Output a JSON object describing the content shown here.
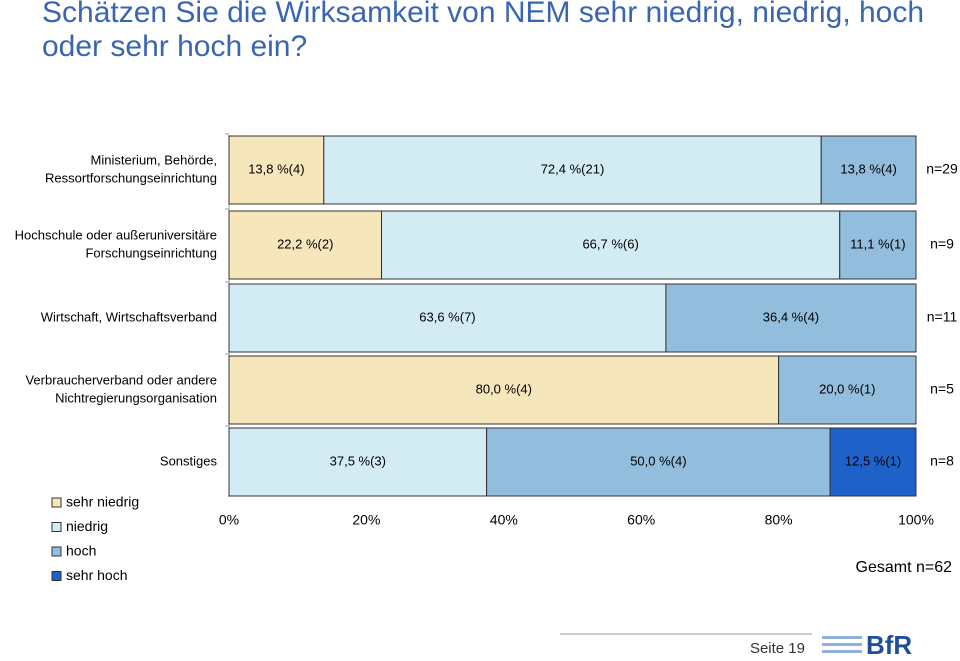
{
  "chart_data": {
    "type": "stacked-bar-horizontal",
    "title": "Schätzen Sie die Wirksamkeit von NEM sehr niedrig, niedrig, hoch oder sehr hoch ein?",
    "categories": [
      [
        "Ministerium, Behörde,",
        "Ressortforschungseinrichtung"
      ],
      [
        "Hochschule oder außeruniversitäre",
        "Forschungseinrichtung"
      ],
      [
        "Wirtschaft, Wirtschaftsverband"
      ],
      [
        "Verbraucherverband oder andere",
        "Nichtregierungsorganisation"
      ],
      [
        "Sonstiges"
      ]
    ],
    "series": [
      {
        "name": "sehr niedrig",
        "color": "#f5e6bb",
        "values": [
          13.8,
          22.2,
          null,
          80.0,
          null
        ],
        "value_labels": [
          "13,8 %(4)",
          "22,2 %(2)",
          null,
          "80,0 %(4)",
          null
        ]
      },
      {
        "name": "niedrig",
        "color": "#d3ecf3",
        "values": [
          72.4,
          66.7,
          63.6,
          null,
          37.5
        ],
        "value_labels": [
          "72,4 %(21)",
          "66,7 %(6)",
          "63,6 %(7)",
          null,
          "37,5 %(3)"
        ]
      },
      {
        "name": "hoch",
        "color": "#93bddc",
        "values": [
          13.8,
          11.1,
          36.4,
          20.0,
          50.0
        ],
        "value_labels": [
          "13,8 %(4)",
          "11,1 %(1)",
          "36,4 %(4)",
          "20,0 %(1)",
          "50,0 %(4)"
        ]
      },
      {
        "name": "sehr hoch",
        "color": "#1e62c9",
        "values": [
          null,
          null,
          null,
          null,
          12.5
        ],
        "value_labels": [
          null,
          null,
          null,
          null,
          "12,5 %(1)"
        ]
      }
    ],
    "n_labels": [
      "n=29",
      "n=9",
      "n=11",
      "n=5",
      "n=8"
    ],
    "xlim": [
      0,
      100
    ],
    "xticks": [
      {
        "value": 0,
        "label": "0%"
      },
      {
        "value": 20,
        "label": "20%"
      },
      {
        "value": 40,
        "label": "40%"
      },
      {
        "value": 60,
        "label": "60%"
      },
      {
        "value": 80,
        "label": "80%"
      },
      {
        "value": 100,
        "label": "100%"
      }
    ],
    "total_label": "Gesamt n=62",
    "page_label": "Seite 19",
    "logo_text": "BfR"
  }
}
